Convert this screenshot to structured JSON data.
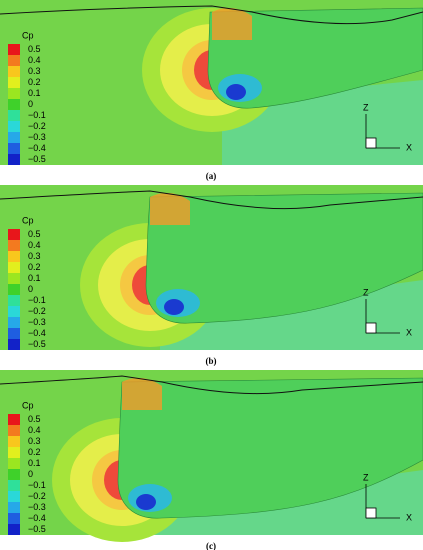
{
  "figure": {
    "panels": [
      {
        "label": "(a)",
        "legend_title": "Cp",
        "legend_labels": [
          "0.5",
          "0.4",
          "0.3",
          "0.2",
          "0.1",
          "0",
          "−0.1",
          "−0.2",
          "−0.3",
          "−0.4",
          "−0.5"
        ],
        "axis_z": "Z",
        "axis_x": "X"
      },
      {
        "label": "(b)",
        "legend_title": "Cp",
        "legend_labels": [
          "0.5",
          "0.4",
          "0.3",
          "0.2",
          "0.1",
          "0",
          "−0.1",
          "−0.2",
          "−0.3",
          "−0.4",
          "−0.5"
        ],
        "axis_z": "Z",
        "axis_x": "X"
      },
      {
        "label": "(c)",
        "legend_title": "Cp",
        "legend_labels": [
          "0.5",
          "0.4",
          "0.3",
          "0.2",
          "0.1",
          "0",
          "−0.1",
          "−0.2",
          "−0.3",
          "−0.4",
          "−0.5"
        ],
        "axis_z": "Z",
        "axis_x": "X"
      }
    ]
  }
}
